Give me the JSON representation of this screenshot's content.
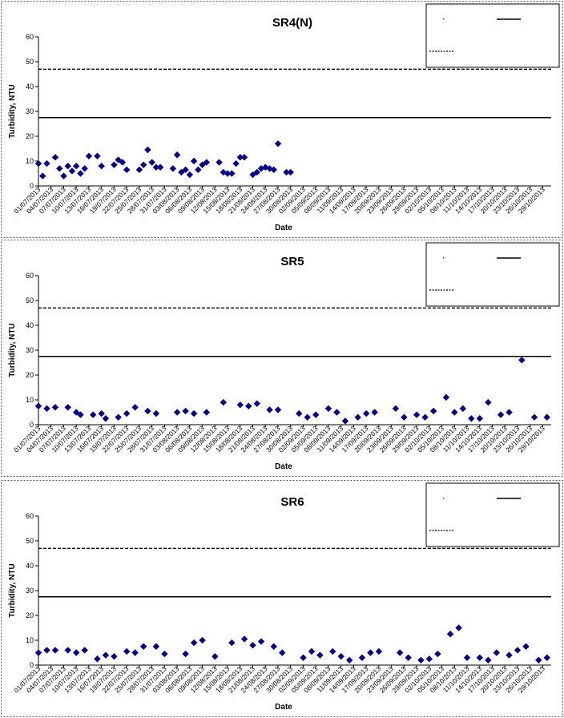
{
  "chart_data": [
    {
      "type": "scatter",
      "title": "SR4(N)",
      "xlabel": "Date",
      "ylabel": "Turbidity, NTU",
      "ylim": [
        0,
        60
      ],
      "yticks": [
        0,
        10,
        20,
        30,
        40,
        50,
        60
      ],
      "xlim": [
        "01/07/2013",
        "31/10/2013"
      ],
      "xtick_labels": [
        "01/07/2013",
        "04/07/2013",
        "07/07/2013",
        "10/07/2013",
        "13/07/2013",
        "16/07/2013",
        "19/07/2013",
        "22/07/2013",
        "25/07/2013",
        "28/07/2013",
        "31/07/2013",
        "03/08/2013",
        "06/08/2013",
        "09/08/2013",
        "12/08/2013",
        "15/08/2013",
        "18/08/2013",
        "21/08/2013",
        "24/08/2013",
        "27/08/2013",
        "30/08/2013",
        "02/09/2013",
        "05/09/2013",
        "08/09/2013",
        "11/09/2013",
        "14/09/2013",
        "17/09/2013",
        "20/09/2013",
        "23/09/2013",
        "26/09/2013",
        "29/09/2013",
        "02/10/2013",
        "05/10/2013",
        "08/10/2013",
        "11/10/2013",
        "14/10/2013",
        "17/10/2013",
        "20/10/2013",
        "23/10/2013",
        "26/10/2013",
        "29/10/2013"
      ],
      "legend_placement": "top-right",
      "series": [
        {
          "marker": "diamond",
          "color": "#00008b",
          "points": [
            {
              "x": "01/07/2013",
              "y": 9
            },
            {
              "x": "02/07/2013",
              "y": 4
            },
            {
              "x": "03/07/2013",
              "y": 9
            },
            {
              "x": "05/07/2013",
              "y": 11.5
            },
            {
              "x": "06/07/2013",
              "y": 7
            },
            {
              "x": "07/07/2013",
              "y": 4
            },
            {
              "x": "08/07/2013",
              "y": 8
            },
            {
              "x": "09/07/2013",
              "y": 6
            },
            {
              "x": "10/07/2013",
              "y": 8
            },
            {
              "x": "11/07/2013",
              "y": 5
            },
            {
              "x": "12/07/2013",
              "y": 7
            },
            {
              "x": "13/07/2013",
              "y": 12
            },
            {
              "x": "15/07/2013",
              "y": 12
            },
            {
              "x": "16/07/2013",
              "y": 8
            },
            {
              "x": "19/07/2013",
              "y": 8.5
            },
            {
              "x": "20/07/2013",
              "y": 10.5
            },
            {
              "x": "21/07/2013",
              "y": 9.5
            },
            {
              "x": "22/07/2013",
              "y": 6.5
            },
            {
              "x": "25/07/2013",
              "y": 6.5
            },
            {
              "x": "26/07/2013",
              "y": 8.5
            },
            {
              "x": "27/07/2013",
              "y": 14.5
            },
            {
              "x": "28/07/2013",
              "y": 9.5
            },
            {
              "x": "29/07/2013",
              "y": 7.5
            },
            {
              "x": "30/07/2013",
              "y": 7.5
            },
            {
              "x": "02/08/2013",
              "y": 7
            },
            {
              "x": "03/08/2013",
              "y": 12.5
            },
            {
              "x": "04/08/2013",
              "y": 5.5
            },
            {
              "x": "05/08/2013",
              "y": 6.5
            },
            {
              "x": "06/08/2013",
              "y": 4.5
            },
            {
              "x": "07/08/2013",
              "y": 10
            },
            {
              "x": "08/08/2013",
              "y": 6.5
            },
            {
              "x": "09/08/2013",
              "y": 8.5
            },
            {
              "x": "10/08/2013",
              "y": 9.5
            },
            {
              "x": "13/08/2013",
              "y": 9.5
            },
            {
              "x": "14/08/2013",
              "y": 5.5
            },
            {
              "x": "15/08/2013",
              "y": 5
            },
            {
              "x": "16/08/2013",
              "y": 5
            },
            {
              "x": "17/08/2013",
              "y": 9
            },
            {
              "x": "18/08/2013",
              "y": 11.5
            },
            {
              "x": "19/08/2013",
              "y": 11.5
            },
            {
              "x": "21/08/2013",
              "y": 4.5
            },
            {
              "x": "22/08/2013",
              "y": 5.5
            },
            {
              "x": "23/08/2013",
              "y": 7
            },
            {
              "x": "24/08/2013",
              "y": 7.5
            },
            {
              "x": "25/08/2013",
              "y": 7
            },
            {
              "x": "26/08/2013",
              "y": 6.5
            },
            {
              "x": "27/08/2013",
              "y": 17
            },
            {
              "x": "29/08/2013",
              "y": 5.5
            },
            {
              "x": "30/08/2013",
              "y": 5.5
            }
          ]
        }
      ],
      "reference_lines": [
        {
          "style": "dashed",
          "y": 47
        },
        {
          "style": "solid",
          "y": 27.5
        }
      ]
    },
    {
      "type": "scatter",
      "title": "SR5",
      "xlabel": "Date",
      "ylabel": "Turbidity, NTU",
      "ylim": [
        0,
        60
      ],
      "yticks": [
        0,
        10,
        20,
        30,
        40,
        50,
        60
      ],
      "xlim": [
        "01/07/2013",
        "31/10/2013"
      ],
      "xtick_labels": [
        "01/07/2013",
        "04/07/2013",
        "07/07/2013",
        "10/07/2013",
        "13/07/2013",
        "16/07/2013",
        "19/07/2013",
        "22/07/2013",
        "25/07/2013",
        "28/07/2013",
        "31/07/2013",
        "03/08/2013",
        "06/08/2013",
        "09/08/2013",
        "12/08/2013",
        "15/08/2013",
        "18/08/2013",
        "21/08/2013",
        "24/08/2013",
        "27/08/2013",
        "30/08/2013",
        "02/09/2013",
        "05/09/2013",
        "08/09/2013",
        "11/09/2013",
        "14/09/2013",
        "17/09/2013",
        "20/09/2013",
        "23/09/2013",
        "26/09/2013",
        "29/09/2013",
        "02/10/2013",
        "05/10/2013",
        "08/10/2013",
        "11/10/2013",
        "14/10/2013",
        "17/10/2013",
        "20/10/2013",
        "23/10/2013",
        "26/10/2013",
        "29/10/2013"
      ],
      "legend_placement": "top-right",
      "series": [
        {
          "marker": "diamond",
          "color": "#00008b",
          "points": [
            {
              "x": "01/07/2013",
              "y": 7.5
            },
            {
              "x": "03/07/2013",
              "y": 6.5
            },
            {
              "x": "05/07/2013",
              "y": 7
            },
            {
              "x": "08/07/2013",
              "y": 7
            },
            {
              "x": "10/07/2013",
              "y": 5
            },
            {
              "x": "11/07/2013",
              "y": 4
            },
            {
              "x": "14/07/2013",
              "y": 4
            },
            {
              "x": "16/07/2013",
              "y": 4.5
            },
            {
              "x": "17/07/2013",
              "y": 2.5
            },
            {
              "x": "20/07/2013",
              "y": 3
            },
            {
              "x": "22/07/2013",
              "y": 4.5
            },
            {
              "x": "24/07/2013",
              "y": 7
            },
            {
              "x": "27/07/2013",
              "y": 5.5
            },
            {
              "x": "29/07/2013",
              "y": 4.5
            },
            {
              "x": "03/08/2013",
              "y": 5
            },
            {
              "x": "05/08/2013",
              "y": 5.5
            },
            {
              "x": "07/08/2013",
              "y": 4.5
            },
            {
              "x": "10/08/2013",
              "y": 5
            },
            {
              "x": "14/08/2013",
              "y": 9
            },
            {
              "x": "18/08/2013",
              "y": 8
            },
            {
              "x": "20/08/2013",
              "y": 7.5
            },
            {
              "x": "22/08/2013",
              "y": 8.5
            },
            {
              "x": "25/08/2013",
              "y": 6
            },
            {
              "x": "27/08/2013",
              "y": 6
            },
            {
              "x": "01/09/2013",
              "y": 4.5
            },
            {
              "x": "03/09/2013",
              "y": 3
            },
            {
              "x": "05/09/2013",
              "y": 4
            },
            {
              "x": "08/09/2013",
              "y": 6.5
            },
            {
              "x": "10/09/2013",
              "y": 5
            },
            {
              "x": "12/09/2013",
              "y": 1.5
            },
            {
              "x": "15/09/2013",
              "y": 3
            },
            {
              "x": "17/09/2013",
              "y": 4.5
            },
            {
              "x": "19/09/2013",
              "y": 5
            },
            {
              "x": "24/09/2013",
              "y": 6.5
            },
            {
              "x": "26/09/2013",
              "y": 3
            },
            {
              "x": "29/09/2013",
              "y": 4
            },
            {
              "x": "01/10/2013",
              "y": 3
            },
            {
              "x": "03/10/2013",
              "y": 5.5
            },
            {
              "x": "06/10/2013",
              "y": 11
            },
            {
              "x": "08/10/2013",
              "y": 5
            },
            {
              "x": "10/10/2013",
              "y": 6.5
            },
            {
              "x": "12/10/2013",
              "y": 2.5
            },
            {
              "x": "14/10/2013",
              "y": 2.5
            },
            {
              "x": "16/10/2013",
              "y": 9
            },
            {
              "x": "19/10/2013",
              "y": 4
            },
            {
              "x": "21/10/2013",
              "y": 5
            },
            {
              "x": "24/10/2013",
              "y": 26
            },
            {
              "x": "27/10/2013",
              "y": 3
            },
            {
              "x": "30/10/2013",
              "y": 3
            }
          ]
        }
      ],
      "reference_lines": [
        {
          "style": "dashed",
          "y": 47
        },
        {
          "style": "solid",
          "y": 27.5
        }
      ]
    },
    {
      "type": "scatter",
      "title": "SR6",
      "xlabel": "Date",
      "ylabel": "Turbidity, NTU",
      "ylim": [
        0,
        60
      ],
      "yticks": [
        0,
        10,
        20,
        30,
        40,
        50,
        60
      ],
      "xlim": [
        "01/07/2013",
        "31/10/2013"
      ],
      "xtick_labels": [
        "01/07/2013",
        "04/07/2013",
        "07/07/2013",
        "10/07/2013",
        "13/07/2013",
        "16/07/2013",
        "19/07/2013",
        "22/07/2013",
        "25/07/2013",
        "28/07/2013",
        "31/07/2013",
        "03/08/2013",
        "06/08/2013",
        "09/08/2013",
        "12/08/2013",
        "15/08/2013",
        "18/08/2013",
        "21/08/2013",
        "24/08/2013",
        "27/08/2013",
        "30/08/2013",
        "02/09/2013",
        "05/09/2013",
        "08/09/2013",
        "11/09/2013",
        "14/09/2013",
        "17/09/2013",
        "20/09/2013",
        "23/09/2013",
        "26/09/2013",
        "29/09/2013",
        "02/10/2013",
        "05/10/2013",
        "08/10/2013",
        "11/10/2013",
        "14/10/2013",
        "17/10/2013",
        "20/10/2013",
        "23/10/2013",
        "26/10/2013",
        "29/10/2013"
      ],
      "legend_placement": "top-right",
      "series": [
        {
          "marker": "diamond",
          "color": "#00008b",
          "points": [
            {
              "x": "01/07/2013",
              "y": 5
            },
            {
              "x": "03/07/2013",
              "y": 6
            },
            {
              "x": "05/07/2013",
              "y": 6
            },
            {
              "x": "08/07/2013",
              "y": 6
            },
            {
              "x": "10/07/2013",
              "y": 5
            },
            {
              "x": "12/07/2013",
              "y": 6
            },
            {
              "x": "15/07/2013",
              "y": 2.5
            },
            {
              "x": "17/07/2013",
              "y": 4
            },
            {
              "x": "19/07/2013",
              "y": 3.5
            },
            {
              "x": "22/07/2013",
              "y": 5.5
            },
            {
              "x": "24/07/2013",
              "y": 5
            },
            {
              "x": "26/07/2013",
              "y": 7.5
            },
            {
              "x": "29/07/2013",
              "y": 7.5
            },
            {
              "x": "31/07/2013",
              "y": 4.5
            },
            {
              "x": "05/08/2013",
              "y": 4.5
            },
            {
              "x": "07/08/2013",
              "y": 9
            },
            {
              "x": "09/08/2013",
              "y": 10
            },
            {
              "x": "12/08/2013",
              "y": 3.5
            },
            {
              "x": "16/08/2013",
              "y": 9
            },
            {
              "x": "19/08/2013",
              "y": 10.5
            },
            {
              "x": "21/08/2013",
              "y": 8
            },
            {
              "x": "23/08/2013",
              "y": 9.5
            },
            {
              "x": "26/08/2013",
              "y": 7.5
            },
            {
              "x": "28/08/2013",
              "y": 5
            },
            {
              "x": "02/09/2013",
              "y": 3
            },
            {
              "x": "04/09/2013",
              "y": 5.5
            },
            {
              "x": "06/09/2013",
              "y": 4
            },
            {
              "x": "09/09/2013",
              "y": 5.5
            },
            {
              "x": "11/09/2013",
              "y": 3.5
            },
            {
              "x": "13/09/2013",
              "y": 2
            },
            {
              "x": "16/09/2013",
              "y": 3
            },
            {
              "x": "18/09/2013",
              "y": 5
            },
            {
              "x": "20/09/2013",
              "y": 5.5
            },
            {
              "x": "25/09/2013",
              "y": 5
            },
            {
              "x": "27/09/2013",
              "y": 3
            },
            {
              "x": "30/09/2013",
              "y": 2
            },
            {
              "x": "02/10/2013",
              "y": 2.5
            },
            {
              "x": "04/10/2013",
              "y": 4.5
            },
            {
              "x": "07/10/2013",
              "y": 12.5
            },
            {
              "x": "09/10/2013",
              "y": 15
            },
            {
              "x": "11/10/2013",
              "y": 3
            },
            {
              "x": "14/10/2013",
              "y": 3
            },
            {
              "x": "16/10/2013",
              "y": 2
            },
            {
              "x": "18/10/2013",
              "y": 5
            },
            {
              "x": "21/10/2013",
              "y": 4
            },
            {
              "x": "23/10/2013",
              "y": 6
            },
            {
              "x": "25/10/2013",
              "y": 7.5
            },
            {
              "x": "28/10/2013",
              "y": 2
            },
            {
              "x": "30/10/2013",
              "y": 3
            }
          ]
        }
      ],
      "reference_lines": [
        {
          "style": "dashed",
          "y": 47
        },
        {
          "style": "solid",
          "y": 27.5
        }
      ]
    }
  ]
}
